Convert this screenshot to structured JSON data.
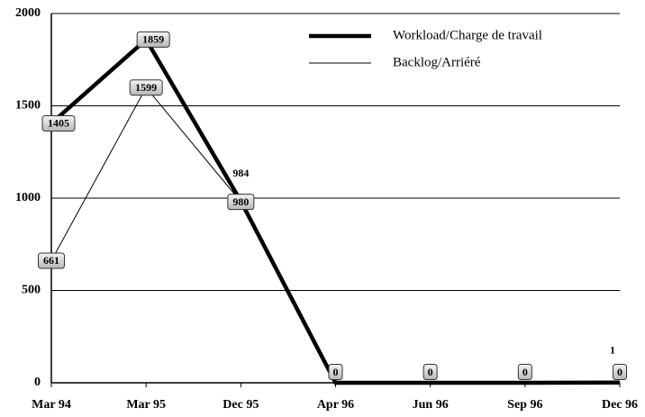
{
  "chart_data": {
    "type": "line",
    "categories": [
      "Mar 94",
      "Mar 95",
      "Dec 95",
      "Apr 96",
      "Jun 96",
      "Sep 96",
      "Dec 96"
    ],
    "series": [
      {
        "name": "Workload/Charge de travail",
        "color": "#000000",
        "values": [
          1405,
          1859,
          984,
          0,
          0,
          0,
          1
        ]
      },
      {
        "name": "Backlog/Arriéré",
        "color": "#000000",
        "values": [
          661,
          1599,
          980,
          0,
          0,
          0,
          0
        ]
      }
    ],
    "ylim": [
      0,
      2000
    ],
    "yticks": [
      0,
      500,
      1000,
      1500,
      2000
    ],
    "grid": true,
    "legend": "top-right"
  }
}
